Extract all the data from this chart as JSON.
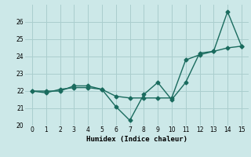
{
  "xlabel": "Humidex (Indice chaleur)",
  "x": [
    0,
    1,
    2,
    3,
    4,
    5,
    6,
    7,
    8,
    9,
    10,
    11,
    12,
    13,
    14,
    15
  ],
  "line1": [
    22.0,
    21.9,
    22.1,
    22.2,
    22.2,
    22.1,
    21.1,
    20.3,
    21.8,
    22.5,
    21.5,
    22.5,
    24.2,
    24.3,
    26.6,
    24.6
  ],
  "line2": [
    22.0,
    22.0,
    22.0,
    22.3,
    22.3,
    22.1,
    21.7,
    21.6,
    21.6,
    21.6,
    21.6,
    23.8,
    24.1,
    24.3,
    24.5,
    24.6
  ],
  "line_color": "#1a6b5e",
  "bg_color": "#cce8e8",
  "grid_color": "#aacece",
  "ylim": [
    20.0,
    27.0
  ],
  "xlim": [
    -0.5,
    15.5
  ],
  "yticks": [
    20,
    21,
    22,
    23,
    24,
    25,
    26
  ],
  "xticks": [
    0,
    1,
    2,
    3,
    4,
    5,
    6,
    7,
    8,
    9,
    10,
    11,
    12,
    13,
    14,
    15
  ],
  "marker": "D",
  "marker_size": 2.5,
  "line_width": 1.0
}
